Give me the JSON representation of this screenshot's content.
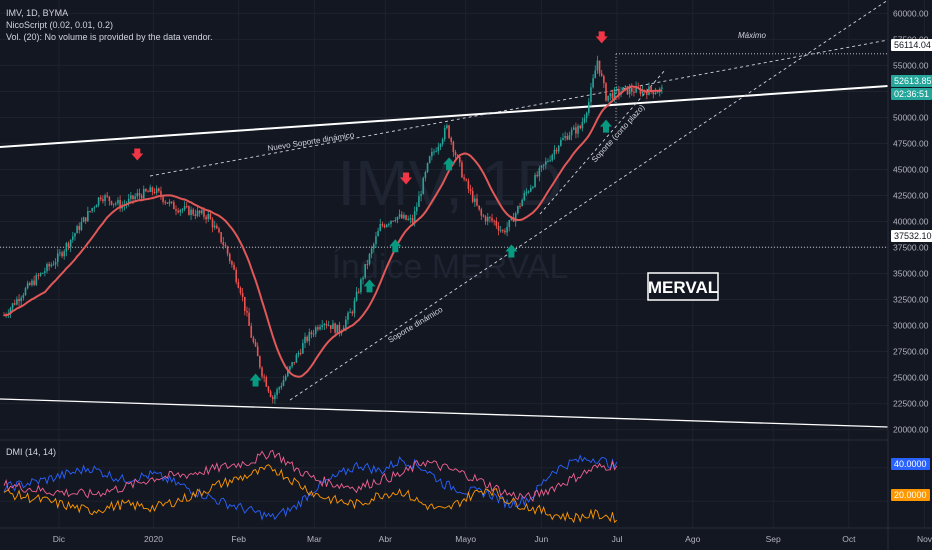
{
  "header": {
    "symbol": "IMV, 1D, BYMA",
    "indicator1": "NicoScript (0.02, 0.01, 0.2)",
    "indicator2": "Vol. (20): No volume is provided by the data vendor."
  },
  "watermark": {
    "ticker": "IMV, 1D",
    "name": "Índice MERVAL"
  },
  "dmi_label": "DMI (14, 14)",
  "badges": {
    "maximo_value": "56114.04",
    "last_price": "52613.85",
    "countdown": "02:36:51",
    "level_value": "37532.10",
    "dmi_blue_value": "40.0000",
    "dmi_orange_value": "20.0000"
  },
  "annotations": {
    "maximo": "Máximo",
    "nuevo_soporte": "Nuevo Soporte dinámico",
    "soporte": "Soporte dinámico",
    "soporte_corto": "Soporte (corto plazo)",
    "merval_box": "MERVAL"
  },
  "colors": {
    "background": "#131722",
    "up": "#26a69a",
    "down": "#ef5350",
    "ma": "#e05858",
    "arrow_down": "#f23645",
    "arrow_up": "#089981",
    "dmi_blue": "#2962ff",
    "dmi_red": "#f06292",
    "dmi_orange": "#ff9800"
  },
  "chart_data": [
    {
      "type": "candlestick",
      "title": "IMV, 1D, BYMA",
      "x": [
        "Dic",
        "2020",
        "Feb",
        "Mar",
        "Abr",
        "Mayo",
        "Jun",
        "Jul",
        "Ago",
        "Sep",
        "Oct",
        "Nov"
      ],
      "y_ticks": [
        "60000.00",
        "57500.00",
        "55000.00",
        "52500.00",
        "50000.00",
        "47500.00",
        "45000.00",
        "42500.00",
        "40000.00",
        "37500.00",
        "35000.00",
        "32500.00",
        "30000.00",
        "27500.00",
        "25000.00",
        "22500.00",
        "20000.00"
      ],
      "ylim": [
        19000,
        61000
      ],
      "close_path_days": [
        0,
        8,
        15,
        25,
        35,
        45,
        55,
        62,
        70,
        78,
        86,
        95,
        103,
        110,
        115,
        120,
        125,
        132,
        140,
        148,
        156,
        162,
        168,
        175,
        182,
        190,
        198,
        206,
        214,
        222,
        228,
        232,
        236,
        242,
        250,
        258,
        263,
        268,
        272,
        276,
        280,
        288,
        295,
        300,
        306
      ],
      "close_path_values": [
        31000,
        33000,
        34500,
        36500,
        39500,
        42500,
        41500,
        42500,
        43000,
        41500,
        41000,
        40500,
        37500,
        33500,
        29000,
        25500,
        23000,
        25500,
        28500,
        30500,
        29500,
        31500,
        35500,
        39500,
        40500,
        40000,
        46000,
        49000,
        44000,
        40500,
        40000,
        39000,
        40000,
        42500,
        45000,
        47500,
        48500,
        49000,
        51500,
        55500,
        52000,
        52600,
        52600,
        52600,
        52600
      ],
      "last_close": 52613.85,
      "max": 56114.04,
      "horizontal_level": 37532.1,
      "arrows_down_days": [
        62,
        187,
        278
      ],
      "arrows_up_days": [
        117,
        170,
        182,
        207,
        236,
        280
      ],
      "series": [
        {
          "name": "",
          "kind": "moving average"
        }
      ]
    },
    {
      "type": "line",
      "title": "DMI (14, 14)",
      "y_ticks": [
        "40.0000",
        "20.0000"
      ],
      "ylim": [
        5,
        55
      ],
      "series": [
        {
          "name": "",
          "color": "#2962ff",
          "days": [
            0,
            20,
            40,
            55,
            70,
            85,
            100,
            115,
            125,
            135,
            145,
            155,
            165,
            175,
            185,
            195,
            205,
            215,
            225,
            235,
            245,
            255,
            265,
            275,
            285
          ],
          "values": [
            28,
            33,
            40,
            33,
            36,
            28,
            20,
            14,
            10,
            16,
            28,
            35,
            42,
            38,
            45,
            40,
            30,
            26,
            25,
            18,
            22,
            38,
            44,
            46,
            41
          ]
        },
        {
          "name": "",
          "color": "#f06292",
          "days": [
            0,
            20,
            40,
            55,
            70,
            85,
            100,
            115,
            125,
            135,
            145,
            155,
            165,
            175,
            185,
            195,
            205,
            215,
            225,
            235,
            245,
            255,
            265,
            275,
            285
          ],
          "values": [
            30,
            26,
            24,
            28,
            34,
            36,
            40,
            44,
            50,
            40,
            33,
            30,
            28,
            33,
            36,
            44,
            40,
            36,
            30,
            24,
            22,
            28,
            34,
            40,
            42
          ]
        },
        {
          "name": "",
          "color": "#ff9800",
          "days": [
            0,
            20,
            40,
            55,
            70,
            85,
            100,
            115,
            125,
            135,
            145,
            155,
            165,
            175,
            185,
            195,
            205,
            215,
            225,
            235,
            245,
            255,
            265,
            275,
            285
          ],
          "values": [
            25,
            20,
            14,
            18,
            16,
            22,
            30,
            36,
            40,
            32,
            24,
            20,
            18,
            24,
            26,
            18,
            14,
            22,
            28,
            20,
            16,
            12,
            10,
            12,
            10
          ]
        }
      ]
    }
  ]
}
